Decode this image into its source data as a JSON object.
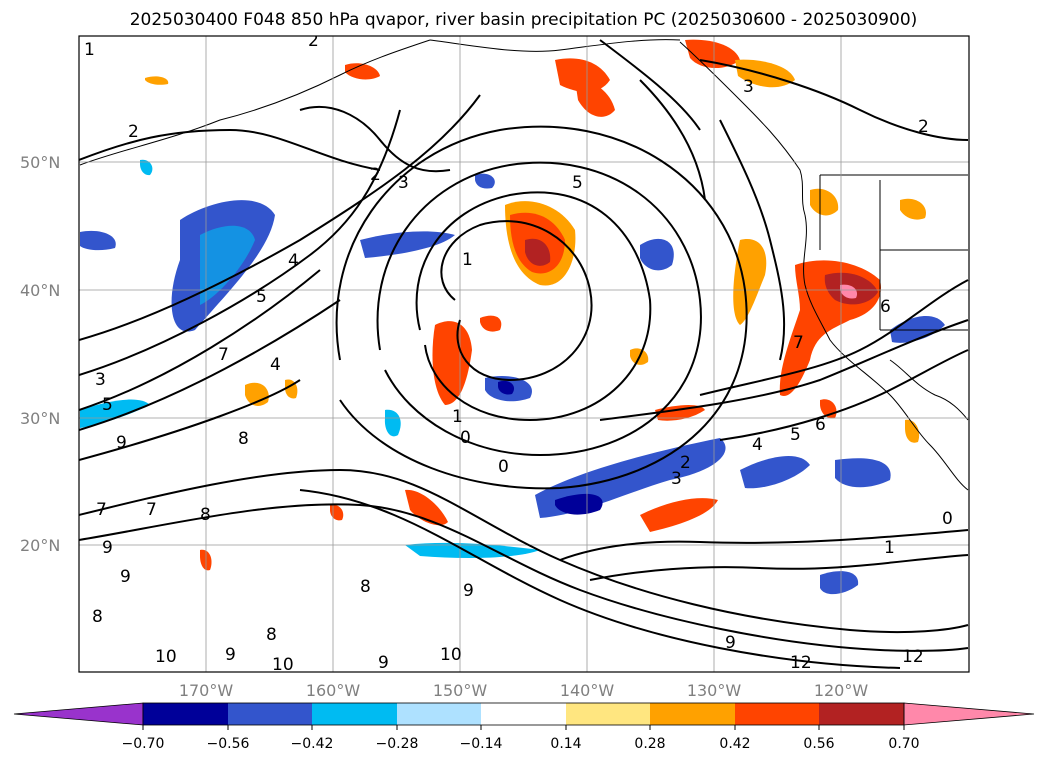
{
  "title": "2025030400 F048 850 hPa qvapor, river basin precipitation PC (2025030600 - 2025030900)",
  "map": {
    "lat_labels": [
      "50°N",
      "40°N",
      "30°N",
      "20°N"
    ],
    "lon_labels": [
      "170°W",
      "160°W",
      "150°W",
      "140°W",
      "130°W",
      "120°W"
    ],
    "contour_labels": [
      "1",
      "2",
      "2",
      "3",
      "2",
      "5",
      "4",
      "5",
      "1",
      "7",
      "4",
      "3",
      "5",
      "9",
      "8",
      "7",
      "8",
      "7",
      "9",
      "9",
      "8",
      "8",
      "9",
      "10",
      "10",
      "9",
      "1",
      "0",
      "0",
      "2",
      "3",
      "4",
      "5",
      "6",
      "6",
      "7",
      "3",
      "2",
      "0",
      "1",
      "8",
      "9",
      "10",
      "12",
      "12",
      "9"
    ]
  },
  "colorbar": {
    "colors": [
      "#9933cc",
      "#000099",
      "#3355cc",
      "#00bbf2",
      "#aee1ff",
      "#ffffff",
      "#ffe680",
      "#ffa100",
      "#ff4400",
      "#b22222",
      "#ff88aa"
    ],
    "tick_labels": [
      "−0.70",
      "−0.56",
      "−0.42",
      "−0.28",
      "−0.14",
      "0.14",
      "0.28",
      "0.42",
      "0.56",
      "0.70"
    ]
  }
}
